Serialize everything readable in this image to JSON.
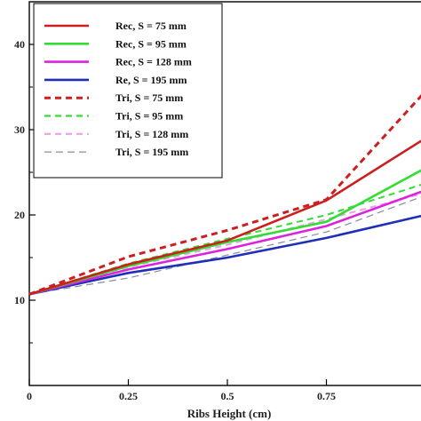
{
  "chart_data": {
    "type": "line",
    "title": "",
    "xlabel": "Ribs Height (cm)",
    "ylabel": "",
    "xlim": [
      0,
      1.0
    ],
    "ylim": [
      0,
      45
    ],
    "x": [
      0,
      0.25,
      0.5,
      0.75,
      1.0
    ],
    "x_ticks": [
      {
        "value": 0,
        "label": "0"
      },
      {
        "value": 0.25,
        "label": "0.25"
      },
      {
        "value": 0.5,
        "label": "0.5"
      },
      {
        "value": 0.75,
        "label": "0.75"
      }
    ],
    "y_ticks": [
      {
        "value": 10,
        "label": "10"
      },
      {
        "value": 20,
        "label": "20"
      },
      {
        "value": 30,
        "label": "30"
      },
      {
        "value": 40,
        "label": "40"
      }
    ],
    "grid": false,
    "legend_position": "top-left",
    "series": [
      {
        "name": "Rec, S = 75 mm",
        "color": "#cc1f1f",
        "style": "solid",
        "values": [
          10.7,
          14.2,
          17.0,
          21.7,
          29.0
        ]
      },
      {
        "name": "Rec, S = 95 mm",
        "color": "#33dd33",
        "style": "solid",
        "values": [
          10.7,
          14.0,
          16.8,
          19.2,
          25.5
        ]
      },
      {
        "name": "Rec, S = 128 mm",
        "color": "#dd22dd",
        "style": "solid",
        "values": [
          10.7,
          13.6,
          16.0,
          18.7,
          22.9
        ]
      },
      {
        "name": "Re, S = 195 mm",
        "color": "#1f2fb8",
        "style": "solid",
        "values": [
          10.7,
          13.2,
          15.0,
          17.3,
          20.0
        ]
      },
      {
        "name": "Tri, S = 75 mm",
        "color": "#cc1f1f",
        "style": "dashed",
        "values": [
          10.7,
          15.1,
          18.2,
          21.8,
          34.5
        ]
      },
      {
        "name": "Tri, S = 95 mm",
        "color": "#33dd33",
        "style": "dashed",
        "values": [
          10.7,
          14.3,
          17.2,
          20.0,
          23.7
        ]
      },
      {
        "name": "Tri, S = 128 mm",
        "color": "#e8a0e8",
        "style": "dashed",
        "values": [
          10.7,
          13.9,
          16.5,
          19.5,
          22.6
        ]
      },
      {
        "name": "Tri, S = 195 mm",
        "color": "#8888aa",
        "style": "dashed",
        "values": [
          10.7,
          12.6,
          15.3,
          18.0,
          22.3
        ]
      }
    ]
  }
}
